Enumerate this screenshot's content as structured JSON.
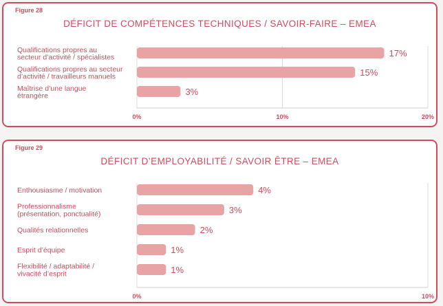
{
  "colors": {
    "accent": "#d44a5c",
    "bar": "#e8a3a5"
  },
  "chart_data": [
    {
      "type": "bar",
      "orientation": "horizontal",
      "figure_label": "Figure 28",
      "title": "DÉFICIT DE COMPÉTENCES TECHNIQUES / SAVOIR-FAIRE – EMEA",
      "categories": [
        [
          "Qualifications propres au",
          "secteur d’activité / spécialistes"
        ],
        [
          "Qualifications propres au secteur",
          "d’activité / travailleurs manuels"
        ],
        [
          "Maîtrise d’une langue",
          "étrangère"
        ]
      ],
      "values": [
        17,
        15,
        3
      ],
      "value_labels": [
        "17%",
        "15%",
        "3%"
      ],
      "xlim": [
        0,
        20
      ],
      "xticks": [
        "0%",
        "10%",
        "20%"
      ],
      "grid": "vertical"
    },
    {
      "type": "bar",
      "orientation": "horizontal",
      "figure_label": "Figure 29",
      "title": "DÉFICIT D’EMPLOYABILITÉ / SAVOIR ÊTRE – EMEA",
      "categories": [
        [
          "Enthousiasme / motivation"
        ],
        [
          "Professionnalisme",
          "(présentation, ponctualité)"
        ],
        [
          "Qualités relationnelles"
        ],
        [
          "Esprit d’équipe"
        ],
        [
          "Flexibilité / adaptabilité /",
          "vivacité d’esprit"
        ]
      ],
      "values": [
        4,
        3,
        2,
        1,
        1
      ],
      "value_labels": [
        "4%",
        "3%",
        "2%",
        "1%",
        "1%"
      ],
      "xlim": [
        0,
        10
      ],
      "xticks": [
        "0%",
        "10%"
      ],
      "grid": "vertical"
    }
  ]
}
